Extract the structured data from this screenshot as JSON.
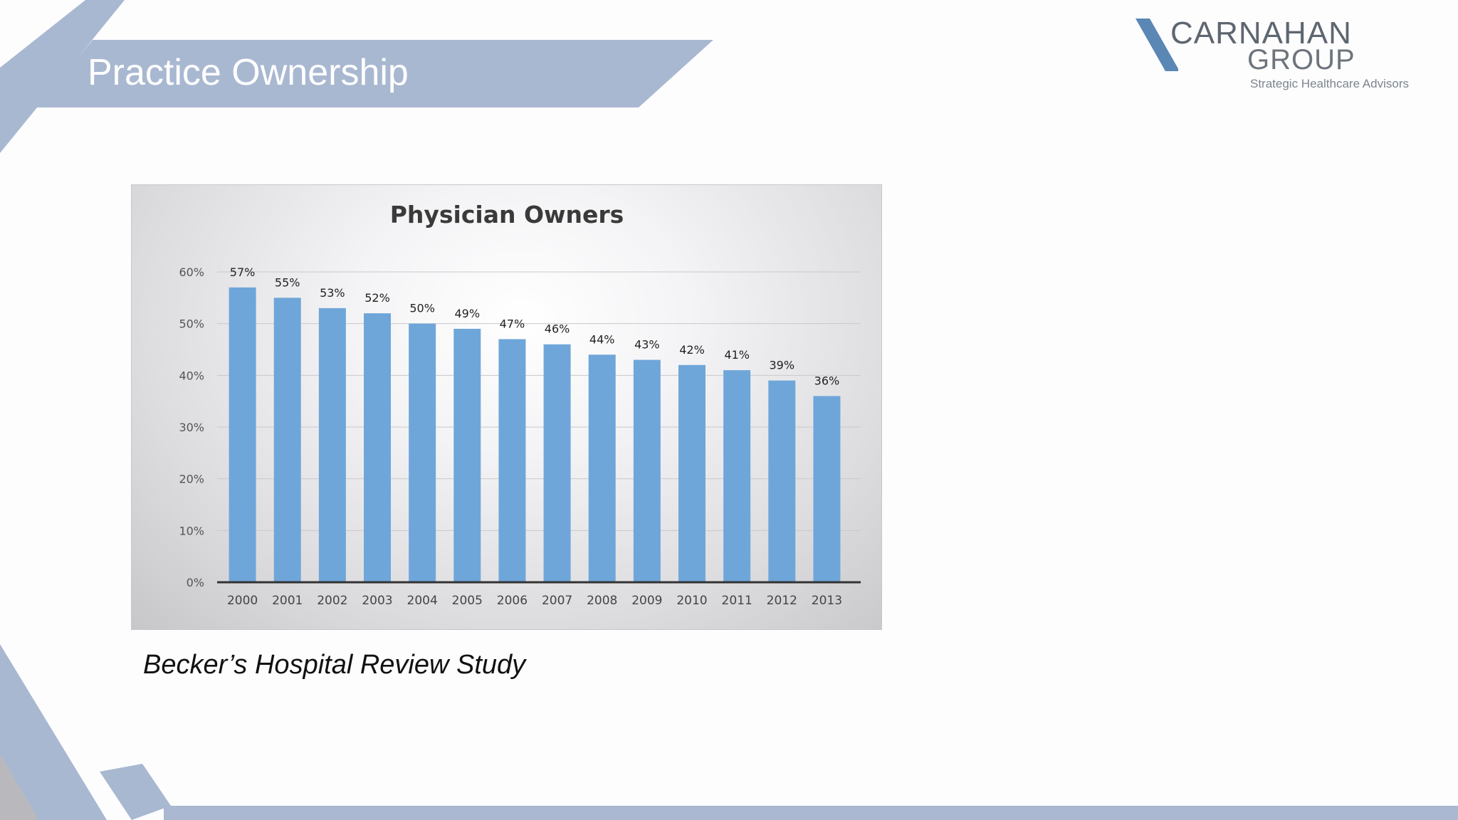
{
  "slide": {
    "title": "Practice Ownership",
    "source": "Becker’s Hospital Review Study"
  },
  "logo": {
    "line1": "CARNAHAN",
    "line2": "GROUP",
    "tagline": "Strategic Healthcare Advisors"
  },
  "colors": {
    "banner": "#a9b8d1",
    "bar": "#6fa6d9",
    "logo_mark": "#5b87b5"
  },
  "chart_data": {
    "type": "bar",
    "title": "Physician Owners",
    "categories": [
      "2000",
      "2001",
      "2002",
      "2003",
      "2004",
      "2005",
      "2006",
      "2007",
      "2008",
      "2009",
      "2010",
      "2011",
      "2012",
      "2013"
    ],
    "values": [
      57,
      55,
      53,
      52,
      50,
      49,
      47,
      46,
      44,
      43,
      42,
      41,
      39,
      36
    ],
    "data_labels": [
      "57%",
      "55%",
      "53%",
      "52%",
      "50%",
      "49%",
      "47%",
      "46%",
      "44%",
      "43%",
      "42%",
      "41%",
      "39%",
      "36%"
    ],
    "yticks": [
      "0%",
      "10%",
      "20%",
      "30%",
      "40%",
      "50%",
      "60%"
    ],
    "ylim": [
      0,
      60
    ],
    "grid": true,
    "legend": "none"
  }
}
